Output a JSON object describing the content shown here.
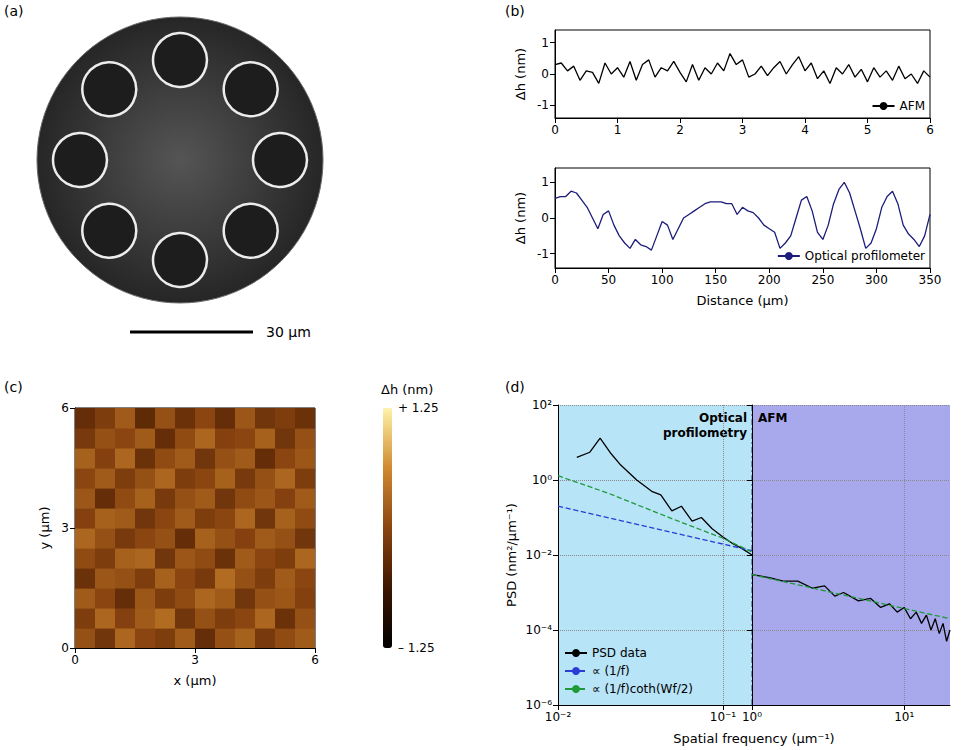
{
  "chart_data": [
    {
      "type": "image",
      "panel": "(a)",
      "capillaries": 8,
      "scale_bar": "30 μm"
    },
    {
      "type": "line",
      "panel": "(b)",
      "ylabel": "Δh (nm)",
      "xlim": [
        0,
        6
      ],
      "xticks": [
        0,
        1,
        2,
        3,
        4,
        5,
        6
      ],
      "ylim": [
        -1.4,
        1.4
      ],
      "yticks": [
        -1,
        0,
        1
      ],
      "grid": false,
      "legend": "lower right",
      "series": [
        {
          "name": "AFM",
          "color": "#000000",
          "x": [
            0,
            0.1,
            0.2,
            0.3,
            0.4,
            0.5,
            0.6,
            0.7,
            0.8,
            0.9,
            1,
            1.1,
            1.2,
            1.3,
            1.4,
            1.5,
            1.6,
            1.7,
            1.8,
            1.9,
            2,
            2.1,
            2.2,
            2.3,
            2.4,
            2.5,
            2.6,
            2.7,
            2.8,
            2.9,
            3,
            3.1,
            3.2,
            3.3,
            3.4,
            3.5,
            3.6,
            3.7,
            3.8,
            3.9,
            4,
            4.1,
            4.2,
            4.3,
            4.4,
            4.5,
            4.6,
            4.7,
            4.8,
            4.9,
            5,
            5.1,
            5.2,
            5.3,
            5.4,
            5.5,
            5.6,
            5.7,
            5.8,
            5.9,
            6
          ],
          "values": [
            0.3,
            0.35,
            0.1,
            0.25,
            -0.2,
            0.1,
            0.05,
            -0.3,
            0.35,
            0.0,
            0.2,
            -0.1,
            0.4,
            -0.2,
            0.3,
            0.45,
            -0.1,
            0.2,
            0.1,
            0.4,
            0.05,
            -0.25,
            0.3,
            -0.2,
            0.2,
            0.0,
            0.35,
            0.1,
            0.65,
            0.3,
            0.45,
            -0.1,
            0.0,
            0.25,
            -0.05,
            0.2,
            0.4,
            0.0,
            0.3,
            0.55,
            0.1,
            0.35,
            -0.15,
            0.1,
            -0.3,
            0.2,
            0.0,
            0.3,
            -0.1,
            0.15,
            -0.25,
            0.2,
            -0.1,
            0.1,
            -0.2,
            0.25,
            -0.15,
            0.0,
            -0.3,
            0.1,
            -0.1
          ]
        }
      ]
    },
    {
      "type": "line",
      "xlabel": "Distance (μm)",
      "ylabel": "Δh (nm)",
      "xlim": [
        0,
        350
      ],
      "xticks": [
        0,
        50,
        100,
        150,
        200,
        250,
        300,
        350
      ],
      "ylim": [
        -1.4,
        1.4
      ],
      "yticks": [
        -1,
        0,
        1
      ],
      "grid": false,
      "legend": "lower right",
      "series": [
        {
          "name": "Optical profilometer",
          "color": "#1c1c7a",
          "x": [
            0,
            5,
            10,
            15,
            20,
            25,
            30,
            35,
            40,
            45,
            50,
            55,
            60,
            65,
            70,
            75,
            80,
            85,
            90,
            95,
            100,
            105,
            110,
            115,
            120,
            125,
            130,
            135,
            140,
            145,
            150,
            155,
            160,
            165,
            170,
            175,
            180,
            185,
            190,
            195,
            200,
            205,
            210,
            215,
            220,
            225,
            230,
            235,
            240,
            245,
            250,
            255,
            260,
            265,
            270,
            275,
            280,
            285,
            290,
            295,
            300,
            305,
            310,
            315,
            320,
            325,
            330,
            335,
            340,
            345,
            350
          ],
          "values": [
            0.55,
            0.6,
            0.6,
            0.75,
            0.7,
            0.5,
            0.3,
            0.0,
            -0.3,
            0.1,
            0.2,
            -0.2,
            -0.5,
            -0.7,
            -0.85,
            -0.6,
            -0.75,
            -0.8,
            -0.9,
            -0.5,
            -0.1,
            -0.2,
            -0.6,
            -0.3,
            0.0,
            0.1,
            0.2,
            0.3,
            0.4,
            0.45,
            0.45,
            0.45,
            0.4,
            0.4,
            0.1,
            0.3,
            0.2,
            0.15,
            0.0,
            -0.2,
            -0.3,
            -0.4,
            -0.85,
            -0.7,
            -0.5,
            0.0,
            0.5,
            0.6,
            0.2,
            -0.4,
            -0.6,
            -0.2,
            0.4,
            0.8,
            1.0,
            0.7,
            0.2,
            -0.3,
            -0.85,
            -0.7,
            -0.3,
            0.3,
            0.6,
            0.75,
            0.4,
            -0.2,
            -0.45,
            -0.6,
            -0.8,
            -0.5,
            0.1
          ]
        }
      ]
    },
    {
      "type": "heatmap",
      "panel": "(c)",
      "xlabel": "x (μm)",
      "ylabel": "y (μm)",
      "xlim": [
        0,
        6
      ],
      "xticks": [
        0,
        3,
        6
      ],
      "ylim": [
        0,
        6
      ],
      "yticks": [
        0,
        3,
        6
      ],
      "x": [
        0.25,
        0.75,
        1.25,
        1.75,
        2.25,
        2.75,
        3.25,
        3.75,
        4.25,
        4.75,
        5.25,
        5.75
      ],
      "y": [
        0.25,
        0.75,
        1.25,
        1.75,
        2.25,
        2.75,
        3.25,
        3.75,
        4.25,
        4.75,
        5.25,
        5.75
      ],
      "cells": [
        [
          0.1,
          -0.2,
          0.3,
          0.0,
          -0.1,
          0.2,
          -0.3,
          0.1,
          0.25,
          -0.15,
          0.05,
          0.2
        ],
        [
          -0.1,
          0.3,
          -0.05,
          0.2,
          0.35,
          -0.2,
          0.1,
          -0.1,
          0.0,
          0.3,
          -0.25,
          0.1
        ],
        [
          0.2,
          0.0,
          -0.3,
          0.15,
          -0.1,
          0.05,
          0.3,
          0.2,
          -0.2,
          0.1,
          0.15,
          -0.05
        ],
        [
          -0.25,
          0.15,
          0.1,
          -0.1,
          0.25,
          0.0,
          -0.15,
          0.35,
          0.1,
          -0.1,
          0.2,
          0.0
        ],
        [
          0.05,
          -0.1,
          0.25,
          0.3,
          -0.2,
          0.15,
          0.05,
          -0.25,
          0.2,
          0.0,
          -0.1,
          0.3
        ],
        [
          0.3,
          0.1,
          -0.15,
          0.0,
          0.1,
          -0.3,
          0.25,
          0.1,
          -0.05,
          0.2,
          0.1,
          -0.2
        ],
        [
          -0.05,
          0.25,
          0.2,
          -0.2,
          0.0,
          0.2,
          -0.1,
          0.0,
          0.3,
          -0.2,
          0.25,
          0.05
        ],
        [
          0.15,
          -0.3,
          0.05,
          0.25,
          -0.15,
          0.1,
          0.2,
          -0.2,
          0.05,
          0.15,
          -0.05,
          0.2
        ],
        [
          0.0,
          0.2,
          -0.1,
          0.1,
          0.3,
          -0.1,
          0.0,
          0.25,
          -0.15,
          0.1,
          0.3,
          -0.1
        ],
        [
          0.25,
          -0.05,
          0.3,
          -0.25,
          0.05,
          0.2,
          -0.2,
          0.1,
          0.2,
          -0.3,
          0.0,
          0.15
        ],
        [
          -0.15,
          0.1,
          0.0,
          0.2,
          -0.3,
          0.05,
          0.3,
          -0.05,
          0.0,
          0.25,
          -0.2,
          0.1
        ],
        [
          -0.3,
          -0.1,
          0.2,
          -0.35,
          0.1,
          -0.25,
          0.0,
          -0.3,
          0.15,
          -0.2,
          -0.1,
          -0.25
        ]
      ],
      "colorbar": {
        "label": "Δh (nm)",
        "range": [
          -1.25,
          1.25
        ],
        "ticks": [
          {
            "value": 1.25,
            "label": "+ 1.25"
          },
          {
            "value": -1.25,
            "label": "– 1.25"
          }
        ]
      }
    },
    {
      "type": "line",
      "panel": "(d)",
      "log": true,
      "grid": true,
      "legend": "lower left",
      "xlabel": "Spatial frequency (μm⁻¹)",
      "ylabel": "PSD (nm²/μm⁻¹)",
      "ylim": [
        1e-06,
        100
      ],
      "yticks": [
        {
          "value": 100,
          "label": "10²"
        },
        {
          "value": 1,
          "label": "10⁰"
        },
        {
          "value": 0.01,
          "label": "10⁻²"
        },
        {
          "value": 0.0001,
          "label": "10⁻⁴"
        },
        {
          "value": 1e-06,
          "label": "10⁻⁶"
        }
      ],
      "sections": [
        {
          "title": "Optical profilometry",
          "color": "#b8e4f7",
          "xlim": [
            0.01,
            0.15
          ],
          "xticks": [
            {
              "value": 0.01,
              "label": "10⁻²"
            },
            {
              "value": 0.1,
              "label": "10⁻¹"
            }
          ],
          "series": [
            {
              "name": "PSD data",
              "color": "#000000",
              "line_style": "solid",
              "x": [
                0.013,
                0.0156,
                0.018,
                0.021,
                0.024,
                0.03,
                0.037,
                0.042,
                0.049,
                0.056,
                0.065,
                0.074,
                0.086,
                0.1,
                0.115,
                0.13,
                0.15
              ],
              "values": [
                4,
                5.5,
                13,
                5,
                2.5,
                1.0,
                0.5,
                0.4,
                0.15,
                0.2,
                0.08,
                0.1,
                0.05,
                0.03,
                0.02,
                0.015,
                0.01
              ]
            },
            {
              "name": "∝ (1/f)",
              "color": "#2a3bd6",
              "line_style": "dashed",
              "x": [
                0.01,
                0.15
              ],
              "values": [
                0.2,
                0.013
              ]
            },
            {
              "name": "∝ (1/f)coth(Wf/2)",
              "color": "#1f9a3a",
              "line_style": "dashed",
              "x": [
                0.01,
                0.02,
                0.05,
                0.1,
                0.15
              ],
              "values": [
                1.3,
                0.45,
                0.09,
                0.028,
                0.012
              ]
            }
          ]
        },
        {
          "title": "AFM",
          "color": "#a8a8ec",
          "xlim": [
            1,
            20
          ],
          "xticks": [
            {
              "value": 1,
              "label": "10⁰"
            },
            {
              "value": 10,
              "label": "10¹"
            }
          ],
          "series": [
            {
              "name": "PSD data",
              "color": "#000000",
              "line_style": "solid",
              "x": [
                1,
                1.3,
                1.6,
                2,
                2.5,
                3,
                3.5,
                4,
                5,
                6,
                7,
                8,
                9,
                10,
                11,
                12,
                13,
                14,
                15,
                16,
                17,
                18,
                19,
                20
              ],
              "values": [
                0.003,
                0.0025,
                0.002,
                0.002,
                0.0013,
                0.0015,
                0.0008,
                0.001,
                0.0006,
                0.0007,
                0.0004,
                0.0005,
                0.0003,
                0.0004,
                0.0002,
                0.0003,
                0.00015,
                0.00025,
                0.0001,
                0.0002,
                8e-05,
                0.00015,
                5e-05,
                0.0001
              ]
            },
            {
              "name": "∝ (1/f)coth(Wf/2)",
              "color": "#1f9a3a",
              "line_style": "dashed",
              "x": [
                1,
                20
              ],
              "values": [
                0.003,
                0.0002
              ]
            }
          ]
        }
      ]
    }
  ]
}
